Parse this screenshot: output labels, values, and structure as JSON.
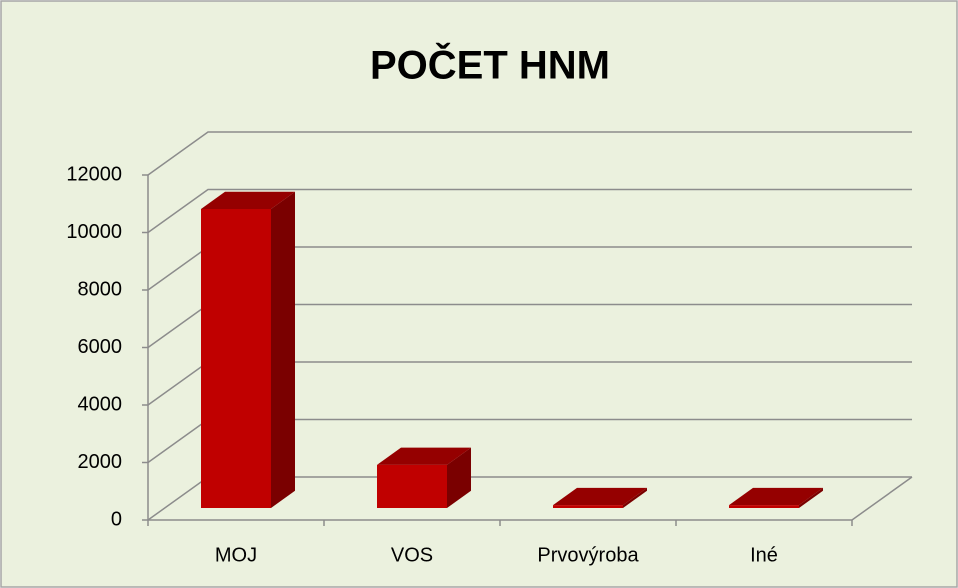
{
  "chart_data": {
    "type": "bar3d",
    "title": "POČET HNM",
    "categories": [
      "MOJ",
      "VOS",
      "Prvovýroba",
      "Iné"
    ],
    "values": [
      10400,
      1500,
      100,
      100
    ],
    "color": "#c00000",
    "ylim": [
      0,
      12000
    ],
    "yticks": [
      0,
      2000,
      4000,
      6000,
      8000,
      10000,
      12000
    ],
    "grid": true
  }
}
